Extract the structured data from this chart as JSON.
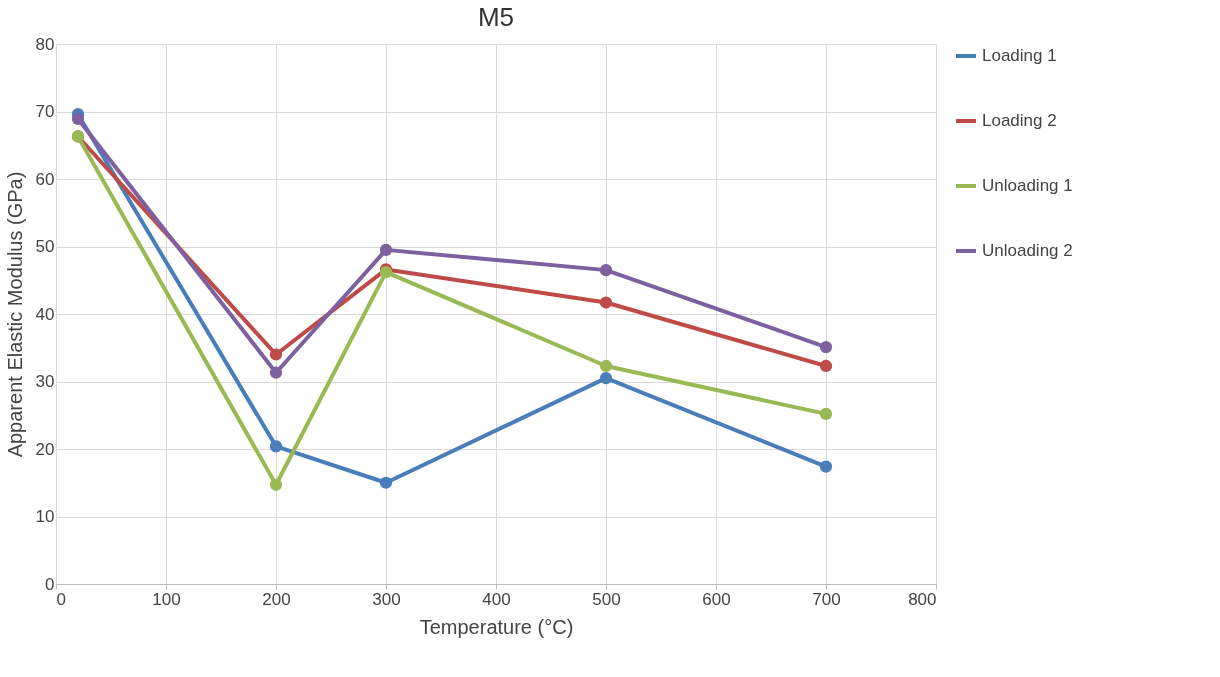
{
  "chart_data": {
    "type": "line",
    "title": "M5",
    "xlabel": "Temperature (°C)",
    "ylabel": "Apparent Elastic Modulus (GPa)",
    "x": [
      20,
      200,
      300,
      500,
      700
    ],
    "series": [
      {
        "name": "Loading 1",
        "color": "#4a7ebb",
        "values": [
          69.6,
          20.4,
          15.0,
          30.5,
          17.4
        ]
      },
      {
        "name": "Loading 2",
        "color": "#be4b48",
        "values": [
          66.3,
          34.0,
          46.6,
          41.7,
          32.3
        ]
      },
      {
        "name": "Unloading 1",
        "color": "#98b954",
        "values": [
          66.3,
          14.7,
          46.2,
          32.3,
          25.2
        ]
      },
      {
        "name": "Unloading 2",
        "color": "#7d60a0",
        "values": [
          68.9,
          31.3,
          49.5,
          46.5,
          35.1
        ]
      }
    ],
    "xlim": [
      0,
      800
    ],
    "xticks": [
      0,
      100,
      200,
      300,
      400,
      500,
      600,
      700,
      800
    ],
    "ylim": [
      0,
      80
    ],
    "yticks": [
      0,
      10,
      20,
      30,
      40,
      50,
      60,
      70,
      80
    ],
    "grid": true,
    "legend": "right",
    "marker": "circle",
    "line_style": "solid"
  }
}
